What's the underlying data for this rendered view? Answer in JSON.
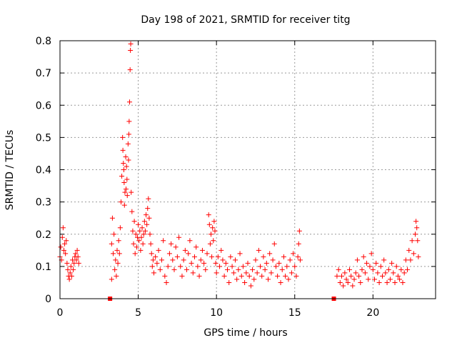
{
  "chart_data": {
    "type": "scatter",
    "title": "Day 198 of 2021, SRMTID for receiver titg",
    "xlabel": "GPS time / hours",
    "ylabel": "SRMTID / TECUs",
    "xlim": [
      0,
      24
    ],
    "ylim": [
      0,
      0.8
    ],
    "xticks": [
      0,
      5,
      10,
      15,
      20
    ],
    "yticks": [
      0,
      0.1,
      0.2,
      0.3,
      0.4,
      0.5,
      0.6,
      0.7,
      0.8
    ],
    "xtick_labels": [
      "0",
      "5",
      "10",
      "15",
      "20"
    ],
    "ytick_labels": [
      "0",
      "0.1",
      "0.2",
      "0.3",
      "0.4",
      "0.5",
      "0.6",
      "0.7",
      "0.8"
    ],
    "grid": true,
    "marker": "+",
    "marker_color": "#ff0000",
    "series": [
      {
        "name": "titg",
        "points": [
          [
            0.0,
            0.13
          ],
          [
            0.05,
            0.16
          ],
          [
            0.1,
            0.12
          ],
          [
            0.15,
            0.19
          ],
          [
            0.2,
            0.22
          ],
          [
            0.25,
            0.15
          ],
          [
            0.3,
            0.17
          ],
          [
            0.35,
            0.14
          ],
          [
            0.4,
            0.18
          ],
          [
            0.45,
            0.11
          ],
          [
            0.5,
            0.09
          ],
          [
            0.55,
            0.07
          ],
          [
            0.6,
            0.06
          ],
          [
            0.65,
            0.08
          ],
          [
            0.7,
            0.1
          ],
          [
            0.75,
            0.07
          ],
          [
            0.8,
            0.12
          ],
          [
            0.85,
            0.09
          ],
          [
            0.9,
            0.11
          ],
          [
            0.95,
            0.13
          ],
          [
            1.0,
            0.14
          ],
          [
            1.05,
            0.12
          ],
          [
            1.1,
            0.15
          ],
          [
            1.15,
            0.13
          ],
          [
            1.2,
            0.11
          ],
          [
            3.2,
            0.0
          ],
          [
            3.3,
            0.06
          ],
          [
            3.3,
            0.17
          ],
          [
            3.35,
            0.25
          ],
          [
            3.4,
            0.14
          ],
          [
            3.45,
            0.2
          ],
          [
            3.5,
            0.09
          ],
          [
            3.55,
            0.12
          ],
          [
            3.6,
            0.07
          ],
          [
            3.65,
            0.15
          ],
          [
            3.7,
            0.11
          ],
          [
            3.75,
            0.18
          ],
          [
            3.8,
            0.14
          ],
          [
            3.85,
            0.22
          ],
          [
            3.9,
            0.3
          ],
          [
            3.95,
            0.38
          ],
          [
            4.0,
            0.5
          ],
          [
            4.02,
            0.46
          ],
          [
            4.05,
            0.42
          ],
          [
            4.08,
            0.4
          ],
          [
            4.1,
            0.36
          ],
          [
            4.12,
            0.29
          ],
          [
            4.15,
            0.33
          ],
          [
            4.2,
            0.44
          ],
          [
            4.22,
            0.34
          ],
          [
            4.25,
            0.41
          ],
          [
            4.28,
            0.37
          ],
          [
            4.3,
            0.32
          ],
          [
            4.35,
            0.48
          ],
          [
            4.38,
            0.43
          ],
          [
            4.4,
            0.51
          ],
          [
            4.42,
            0.55
          ],
          [
            4.45,
            0.61
          ],
          [
            4.48,
            0.71
          ],
          [
            4.5,
            0.77
          ],
          [
            4.52,
            0.79
          ],
          [
            4.55,
            0.33
          ],
          [
            4.6,
            0.27
          ],
          [
            4.65,
            0.21
          ],
          [
            4.7,
            0.17
          ],
          [
            4.75,
            0.24
          ],
          [
            4.8,
            0.14
          ],
          [
            4.85,
            0.2
          ],
          [
            4.9,
            0.16
          ],
          [
            4.95,
            0.19
          ],
          [
            5.0,
            0.23
          ],
          [
            5.05,
            0.18
          ],
          [
            5.1,
            0.21
          ],
          [
            5.15,
            0.15
          ],
          [
            5.2,
            0.19
          ],
          [
            5.25,
            0.22
          ],
          [
            5.3,
            0.17
          ],
          [
            5.35,
            0.2
          ],
          [
            5.4,
            0.24
          ],
          [
            5.45,
            0.21
          ],
          [
            5.5,
            0.26
          ],
          [
            5.55,
            0.23
          ],
          [
            5.6,
            0.28
          ],
          [
            5.65,
            0.31
          ],
          [
            5.7,
            0.25
          ],
          [
            5.75,
            0.2
          ],
          [
            5.8,
            0.17
          ],
          [
            5.85,
            0.14
          ],
          [
            5.9,
            0.1
          ],
          [
            5.95,
            0.12
          ],
          [
            6.0,
            0.08
          ],
          [
            6.1,
            0.13
          ],
          [
            6.2,
            0.11
          ],
          [
            6.3,
            0.15
          ],
          [
            6.4,
            0.09
          ],
          [
            6.5,
            0.12
          ],
          [
            6.6,
            0.18
          ],
          [
            6.7,
            0.07
          ],
          [
            6.8,
            0.05
          ],
          [
            6.9,
            0.1
          ],
          [
            7.0,
            0.14
          ],
          [
            7.1,
            0.17
          ],
          [
            7.2,
            0.12
          ],
          [
            7.3,
            0.09
          ],
          [
            7.4,
            0.16
          ],
          [
            7.5,
            0.13
          ],
          [
            7.6,
            0.19
          ],
          [
            7.7,
            0.1
          ],
          [
            7.8,
            0.07
          ],
          [
            7.9,
            0.12
          ],
          [
            8.0,
            0.15
          ],
          [
            8.1,
            0.09
          ],
          [
            8.2,
            0.14
          ],
          [
            8.3,
            0.18
          ],
          [
            8.4,
            0.11
          ],
          [
            8.5,
            0.08
          ],
          [
            8.6,
            0.13
          ],
          [
            8.7,
            0.16
          ],
          [
            8.8,
            0.1
          ],
          [
            8.9,
            0.07
          ],
          [
            9.0,
            0.12
          ],
          [
            9.1,
            0.15
          ],
          [
            9.2,
            0.11
          ],
          [
            9.3,
            0.09
          ],
          [
            9.4,
            0.14
          ],
          [
            9.5,
            0.26
          ],
          [
            9.55,
            0.23
          ],
          [
            9.6,
            0.17
          ],
          [
            9.65,
            0.2
          ],
          [
            9.7,
            0.13
          ],
          [
            9.75,
            0.22
          ],
          [
            9.8,
            0.18
          ],
          [
            9.85,
            0.24
          ],
          [
            9.9,
            0.21
          ],
          [
            9.95,
            0.11
          ],
          [
            10.0,
            0.08
          ],
          [
            10.1,
            0.13
          ],
          [
            10.2,
            0.1
          ],
          [
            10.3,
            0.15
          ],
          [
            10.4,
            0.12
          ],
          [
            10.5,
            0.07
          ],
          [
            10.6,
            0.11
          ],
          [
            10.7,
            0.09
          ],
          [
            10.8,
            0.05
          ],
          [
            10.9,
            0.13
          ],
          [
            11.0,
            0.1
          ],
          [
            11.1,
            0.08
          ],
          [
            11.2,
            0.12
          ],
          [
            11.3,
            0.06
          ],
          [
            11.4,
            0.09
          ],
          [
            11.5,
            0.14
          ],
          [
            11.6,
            0.07
          ],
          [
            11.7,
            0.1
          ],
          [
            11.8,
            0.05
          ],
          [
            11.9,
            0.08
          ],
          [
            12.0,
            0.11
          ],
          [
            12.1,
            0.07
          ],
          [
            12.2,
            0.04
          ],
          [
            12.3,
            0.09
          ],
          [
            12.4,
            0.06
          ],
          [
            12.5,
            0.12
          ],
          [
            12.6,
            0.08
          ],
          [
            12.7,
            0.15
          ],
          [
            12.8,
            0.1
          ],
          [
            12.9,
            0.07
          ],
          [
            13.0,
            0.13
          ],
          [
            13.1,
            0.09
          ],
          [
            13.2,
            0.11
          ],
          [
            13.3,
            0.06
          ],
          [
            13.4,
            0.14
          ],
          [
            13.5,
            0.08
          ],
          [
            13.6,
            0.12
          ],
          [
            13.7,
            0.17
          ],
          [
            13.8,
            0.1
          ],
          [
            13.9,
            0.07
          ],
          [
            14.0,
            0.11
          ],
          [
            14.1,
            0.05
          ],
          [
            14.2,
            0.09
          ],
          [
            14.3,
            0.13
          ],
          [
            14.4,
            0.07
          ],
          [
            14.5,
            0.1
          ],
          [
            14.6,
            0.06
          ],
          [
            14.7,
            0.12
          ],
          [
            14.8,
            0.08
          ],
          [
            14.9,
            0.14
          ],
          [
            15.0,
            0.1
          ],
          [
            15.1,
            0.07
          ],
          [
            15.2,
            0.13
          ],
          [
            15.25,
            0.17
          ],
          [
            15.3,
            0.21
          ],
          [
            15.35,
            0.12
          ],
          [
            17.5,
            0.0
          ],
          [
            17.7,
            0.07
          ],
          [
            17.8,
            0.09
          ],
          [
            17.9,
            0.05
          ],
          [
            18.0,
            0.07
          ],
          [
            18.1,
            0.04
          ],
          [
            18.2,
            0.08
          ],
          [
            18.3,
            0.06
          ],
          [
            18.4,
            0.05
          ],
          [
            18.5,
            0.09
          ],
          [
            18.6,
            0.07
          ],
          [
            18.7,
            0.04
          ],
          [
            18.8,
            0.06
          ],
          [
            18.9,
            0.08
          ],
          [
            19.0,
            0.12
          ],
          [
            19.1,
            0.07
          ],
          [
            19.2,
            0.05
          ],
          [
            19.3,
            0.09
          ],
          [
            19.4,
            0.13
          ],
          [
            19.5,
            0.08
          ],
          [
            19.6,
            0.11
          ],
          [
            19.7,
            0.06
          ],
          [
            19.8,
            0.1
          ],
          [
            19.9,
            0.14
          ],
          [
            20.0,
            0.09
          ],
          [
            20.1,
            0.06
          ],
          [
            20.2,
            0.11
          ],
          [
            20.3,
            0.08
          ],
          [
            20.4,
            0.05
          ],
          [
            20.5,
            0.1
          ],
          [
            20.6,
            0.07
          ],
          [
            20.7,
            0.12
          ],
          [
            20.8,
            0.08
          ],
          [
            20.9,
            0.05
          ],
          [
            21.0,
            0.09
          ],
          [
            21.1,
            0.06
          ],
          [
            21.2,
            0.11
          ],
          [
            21.3,
            0.08
          ],
          [
            21.4,
            0.05
          ],
          [
            21.5,
            0.1
          ],
          [
            21.6,
            0.07
          ],
          [
            21.7,
            0.06
          ],
          [
            21.8,
            0.09
          ],
          [
            21.9,
            0.05
          ],
          [
            22.0,
            0.08
          ],
          [
            22.1,
            0.12
          ],
          [
            22.2,
            0.09
          ],
          [
            22.3,
            0.15
          ],
          [
            22.4,
            0.12
          ],
          [
            22.5,
            0.18
          ],
          [
            22.6,
            0.14
          ],
          [
            22.7,
            0.2
          ],
          [
            22.75,
            0.24
          ],
          [
            22.8,
            0.22
          ],
          [
            22.85,
            0.18
          ],
          [
            22.9,
            0.13
          ]
        ]
      }
    ]
  }
}
